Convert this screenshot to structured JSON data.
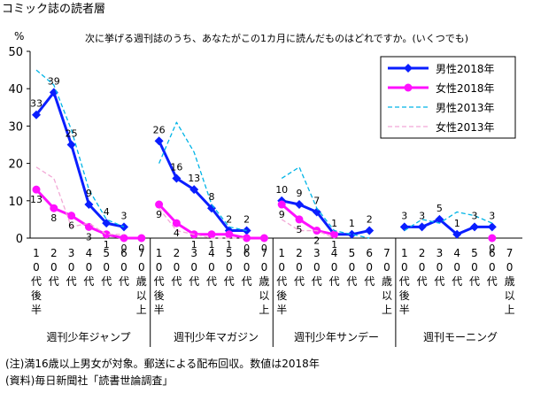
{
  "header": {
    "title": "コミック誌の読者層"
  },
  "chart_data": {
    "type": "line",
    "subtitle": "次に挙げる週刊誌のうち、あなたがこの1カ月に読んだものはどれですか。(いくつでも)",
    "y_unit": "%",
    "ylim": [
      0,
      50
    ],
    "yticks": [
      0,
      10,
      20,
      30,
      40,
      50
    ],
    "grid": false,
    "legend_position": "top-right",
    "age_categories": [
      "10代後半",
      "20代",
      "30代",
      "40代",
      "50代",
      "60代",
      "70歳以上"
    ],
    "groups": [
      "週刊少年ジャンプ",
      "週刊少年マガジン",
      "週刊少年サンデー",
      "週刊モーニング"
    ],
    "series": [
      {
        "name": "男性2018年",
        "color": "#0a1eff",
        "style": "solid-diamond",
        "labeled": true,
        "values": [
          [
            33,
            39,
            25,
            9,
            4,
            3,
            null
          ],
          [
            26,
            16,
            13,
            8,
            2,
            2,
            null
          ],
          [
            10,
            9,
            7,
            1,
            1,
            2,
            null
          ],
          [
            3,
            3,
            5,
            1,
            3,
            3,
            null
          ]
        ]
      },
      {
        "name": "女性2018年",
        "color": "#ff10ff",
        "style": "solid-circle",
        "labeled": true,
        "values": [
          [
            13,
            8,
            6,
            3,
            1,
            0,
            0
          ],
          [
            9,
            4,
            1,
            1,
            1,
            0,
            0
          ],
          [
            9,
            5,
            2,
            1,
            null,
            null,
            null
          ],
          [
            null,
            null,
            null,
            null,
            null,
            0,
            null
          ]
        ]
      },
      {
        "name": "男性2013年",
        "color": "#00b4e6",
        "style": "dashed",
        "labeled": false,
        "values": [
          [
            45,
            41,
            29,
            13,
            5,
            3,
            null
          ],
          [
            20,
            31,
            23,
            9,
            3,
            2,
            null
          ],
          [
            16,
            19,
            8,
            2,
            1,
            0,
            null
          ],
          [
            2,
            5,
            4,
            7,
            6,
            4,
            null
          ]
        ]
      },
      {
        "name": "女性2013年",
        "color": "#f2a8d6",
        "style": "dashed",
        "labeled": false,
        "values": [
          [
            19,
            16,
            3,
            4,
            1,
            1,
            null
          ],
          [
            8,
            2,
            1,
            0,
            0,
            0,
            null
          ],
          [
            5,
            2,
            2,
            0,
            null,
            null,
            null
          ],
          [
            null,
            null,
            null,
            null,
            null,
            null,
            null
          ]
        ]
      }
    ]
  },
  "notes": {
    "note1": "(注)満16歳以上男女が対象。郵送による配布回収。数値は2018年",
    "note2": "(資料)毎日新聞社「読書世論調査」"
  }
}
